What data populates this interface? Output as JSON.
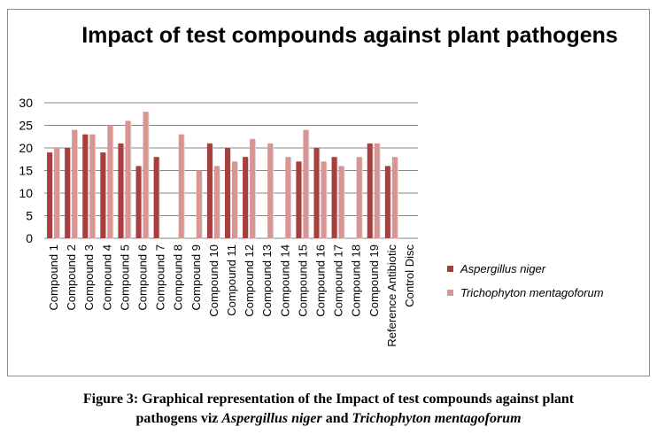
{
  "chart_data": {
    "type": "bar",
    "title": "Impact of test compounds against plant pathogens",
    "xlabel": "",
    "ylabel": "",
    "ylim": [
      0,
      30
    ],
    "yticks": [
      0,
      5,
      10,
      15,
      20,
      25,
      30
    ],
    "grid": true,
    "legend_position": "right",
    "categories": [
      "Compound 1",
      "Compound 2",
      "Compound 3",
      "Compound 4",
      "Compound 5",
      "Compound 6",
      "Compound 7",
      "Compound 8",
      "Compound 9",
      "Compound 10",
      "Compound 11",
      "Compound 12",
      "Compound 13",
      "Compound 14",
      "Compound 15",
      "Compound 16",
      "Compound 17",
      "Compound 18",
      "Compound 19",
      "Reference Antibiotic",
      "Control Disc"
    ],
    "series": [
      {
        "name": "Aspergillus niger",
        "color": "#a83f3f",
        "values": [
          19,
          20,
          23,
          19,
          21,
          16,
          18,
          0,
          0,
          21,
          20,
          18,
          0,
          0,
          17,
          20,
          18,
          0,
          21,
          16,
          0
        ]
      },
      {
        "name": "Trichophyton mentagoforum",
        "color": "#d99594",
        "values": [
          20,
          24,
          23,
          25,
          26,
          28,
          0,
          23,
          15,
          16,
          17,
          22,
          21,
          18,
          24,
          17,
          16,
          18,
          21,
          18,
          0
        ]
      }
    ]
  },
  "caption": {
    "line1": "Figure 3: Graphical representation of the Impact of test compounds against plant",
    "line2_prefix": "pathogens viz ",
    "species1": "Aspergillus niger",
    "and": " and ",
    "species2": "Trichophyton mentagoforum"
  }
}
